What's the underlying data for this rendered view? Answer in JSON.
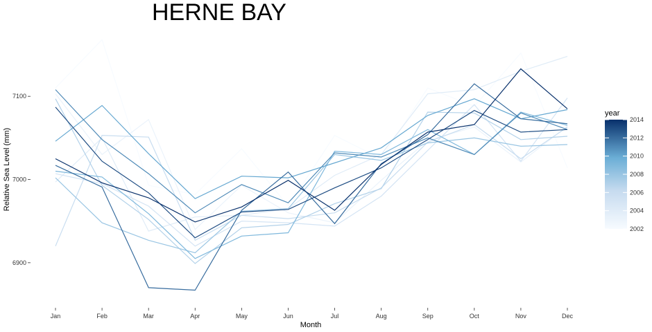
{
  "chart_data": {
    "type": "line",
    "title": "HERNE BAY",
    "xlabel": "Month",
    "ylabel": "Relative Sea Level (mm)",
    "categories": [
      "Jan",
      "Feb",
      "Mar",
      "Apr",
      "May",
      "Jun",
      "Jul",
      "Aug",
      "Sep",
      "Oct",
      "Nov",
      "Dec"
    ],
    "yticks": [
      6900,
      7000,
      7100
    ],
    "ylim": [
      6850,
      7170
    ],
    "grid": false,
    "legend": {
      "title": "year",
      "position": "right",
      "type": "colorbar",
      "range": [
        2002,
        2014
      ],
      "ticks": [
        "2002",
        "2004",
        "2006",
        "2008",
        "2010",
        "2012",
        "2014"
      ],
      "color_low": "#f7fbff",
      "color_high": "#08306b"
    },
    "series": [
      {
        "year": 2002,
        "values": [
          7110,
          7168,
          6993,
          6982,
          7037,
          6968,
          7053,
          7025,
          7110,
          7088,
          7152,
          7014
        ]
      },
      {
        "year": 2003,
        "values": [
          7103,
          7030,
          7072,
          6940,
          6993,
          6960,
          6948,
          6999,
          7047,
          7063,
          7021,
          7064
        ]
      },
      {
        "year": 2004,
        "values": [
          6997,
          7050,
          6938,
          6955,
          6957,
          6965,
          7005,
          7030,
          7103,
          7108,
          7130,
          7148
        ]
      },
      {
        "year": 2005,
        "values": [
          7007,
          6995,
          6968,
          6920,
          6950,
          6948,
          6944,
          6980,
          7035,
          7090,
          7022,
          7098
        ]
      },
      {
        "year": 2006,
        "values": [
          6920,
          7053,
          7051,
          6927,
          6957,
          6953,
          6960,
          6990,
          7045,
          7066,
          7025,
          7063
        ]
      },
      {
        "year": 2007,
        "values": [
          7097,
          6993,
          6952,
          6899,
          6942,
          6946,
          6971,
          6989,
          7081,
          7080,
          7048,
          7052
        ]
      },
      {
        "year": 2008,
        "values": [
          7002,
          6948,
          6927,
          6912,
          6962,
          6965,
          7030,
          7023,
          7044,
          7050,
          7040,
          7042
        ]
      },
      {
        "year": 2009,
        "values": [
          7010,
          7003,
          6959,
          6905,
          6932,
          6936,
          7034,
          7030,
          7060,
          7030,
          7081,
          7065
        ]
      },
      {
        "year": 2010,
        "values": [
          7046,
          7089,
          7031,
          6977,
          7004,
          7002,
          7020,
          7038,
          7077,
          7097,
          7073,
          7084
        ]
      },
      {
        "year": 2011,
        "values": [
          7108,
          7048,
          7007,
          6960,
          6994,
          6972,
          7032,
          7027,
          7050,
          7030,
          7080,
          7060
        ]
      },
      {
        "year": 2012,
        "values": [
          7017,
          6991,
          6870,
          6867,
          6963,
          7009,
          6947,
          7019,
          7054,
          7115,
          7073,
          7067
        ]
      },
      {
        "year": 2013,
        "values": [
          7087,
          7022,
          6984,
          6930,
          6961,
          6964,
          6990,
          7014,
          7048,
          7083,
          7057,
          7060
        ]
      },
      {
        "year": 2014,
        "values": [
          7025,
          6996,
          6978,
          6949,
          6967,
          6999,
          6963,
          7018,
          7057,
          7066,
          7133,
          7085
        ]
      }
    ]
  }
}
